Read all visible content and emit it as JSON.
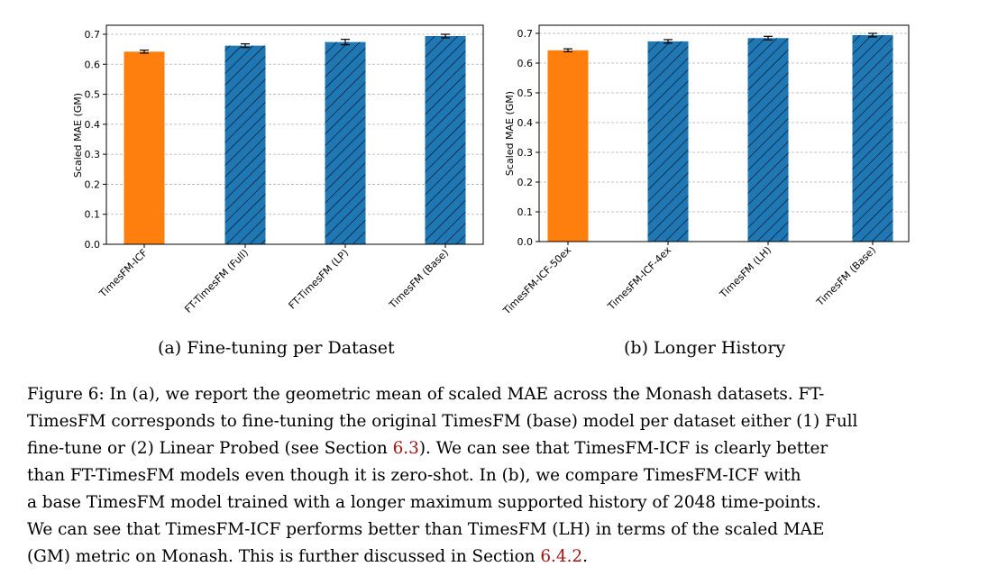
{
  "colors": {
    "orange": "#ff7f0e",
    "blue": "#1f77b4",
    "ref": "#a31515"
  },
  "chart_data": [
    {
      "type": "bar",
      "ylabel": "Scaled MAE (GM)",
      "ylim": [
        0,
        0.72
      ],
      "yticks": [
        "0.0",
        "0.1",
        "0.2",
        "0.3",
        "0.4",
        "0.5",
        "0.6",
        "0.7"
      ],
      "grid": true,
      "categories": [
        "TimesFM-ICF",
        "FT-TimesFM (Full)",
        "FT-TimesFM (LP)",
        "TimesFM (Base)"
      ],
      "values": [
        0.642,
        0.662,
        0.674,
        0.694
      ],
      "errors": [
        0.005,
        0.006,
        0.009,
        0.006
      ],
      "hatched": [
        false,
        true,
        true,
        true
      ],
      "subcaption": "(a) Fine-tuning per Dataset"
    },
    {
      "type": "bar",
      "ylabel": "Scaled MAE (GM)",
      "ylim": [
        0,
        0.72
      ],
      "yticks": [
        "0.0",
        "0.1",
        "0.2",
        "0.3",
        "0.4",
        "0.5",
        "0.6",
        "0.7"
      ],
      "grid": true,
      "categories": [
        "TimesFM-ICF-50ex",
        "TimesFM-ICF-4ex",
        "TimesFM (LH)",
        "TimesFM (Base)"
      ],
      "values": [
        0.643,
        0.673,
        0.684,
        0.694
      ],
      "errors": [
        0.005,
        0.006,
        0.006,
        0.006
      ],
      "hatched": [
        false,
        true,
        true,
        true
      ],
      "subcaption": "(b) Longer History"
    }
  ],
  "caption": {
    "l1": "Figure 6: In (a), we report the geometric mean of scaled MAE across the Monash datasets. FT-",
    "l2": "TimesFM corresponds to fine-tuning the original TimesFM (base) model per dataset either (1) Full",
    "l3a": "fine-tune or (2) Linear Probed (see Section ",
    "l3ref": "6.3",
    "l3b": "). We can see that TimesFM-ICF is clearly better",
    "l4": "than FT-TimesFM models even though it is zero-shot. In (b), we compare TimesFM-ICF with",
    "l5": "a base TimesFM model trained with a longer maximum supported history of 2048 time-points.",
    "l6": "We can see that TimesFM-ICF  performs better than TimesFM (LH) in terms of the scaled MAE",
    "l7a": "(GM) metric on Monash. This is further discussed in Section ",
    "l7ref": "6.4.2",
    "l7b": "."
  }
}
